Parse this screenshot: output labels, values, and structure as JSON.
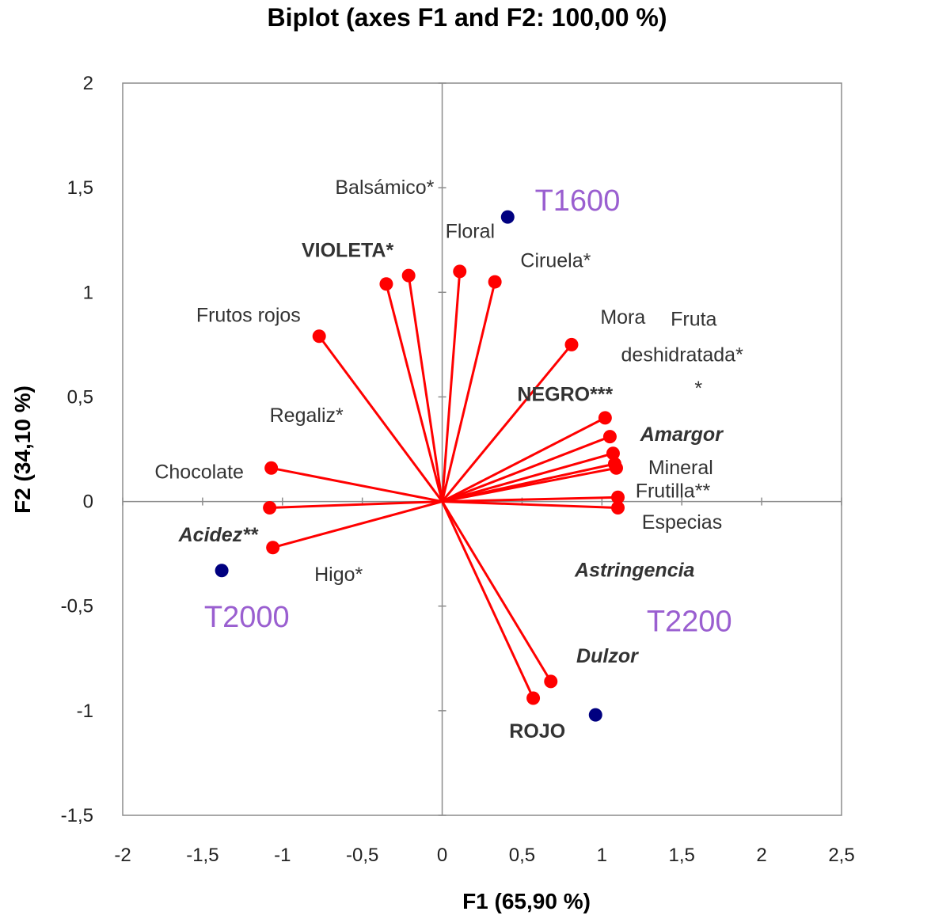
{
  "chart_data": {
    "type": "scatter",
    "title": "Biplot (axes F1 and F2: 100,00 %)",
    "xlabel": "F1 (65,90 %)",
    "ylabel": "F2 (34,10 %)",
    "xlim": [
      -2,
      2.5
    ],
    "ylim": [
      -1.5,
      2
    ],
    "x_ticks": [
      "-2",
      "-1,5",
      "-1",
      "-0,5",
      "0",
      "0,5",
      "1",
      "1,5",
      "2",
      "2,5"
    ],
    "y_ticks": [
      "-1,5",
      "-1",
      "-0,5",
      "0",
      "0,5",
      "1",
      "1,5",
      "2"
    ],
    "grid": false,
    "series": [
      {
        "kind": "variables",
        "color": "#ff0000",
        "points": [
          {
            "x": -0.35,
            "y": 1.04
          },
          {
            "x": -0.21,
            "y": 1.08
          },
          {
            "x": 0.11,
            "y": 1.1
          },
          {
            "x": 0.33,
            "y": 1.05
          },
          {
            "x": -0.77,
            "y": 0.79
          },
          {
            "x": 0.81,
            "y": 0.75
          },
          {
            "x": 1.02,
            "y": 0.4
          },
          {
            "x": 1.05,
            "y": 0.31
          },
          {
            "x": 1.07,
            "y": 0.23
          },
          {
            "x": 1.08,
            "y": 0.18
          },
          {
            "x": 1.09,
            "y": 0.16
          },
          {
            "x": 1.1,
            "y": 0.02
          },
          {
            "x": 1.1,
            "y": -0.03
          },
          {
            "x": -1.07,
            "y": 0.16
          },
          {
            "x": -1.08,
            "y": -0.03
          },
          {
            "x": -1.06,
            "y": -0.22
          },
          {
            "x": 0.57,
            "y": -0.94
          },
          {
            "x": 0.68,
            "y": -0.86
          }
        ]
      },
      {
        "kind": "observations",
        "color": "#000080",
        "points": [
          {
            "x": 0.41,
            "y": 1.36
          },
          {
            "x": -1.38,
            "y": -0.33
          },
          {
            "x": 0.96,
            "y": -1.02
          }
        ]
      }
    ],
    "variable_labels": [
      {
        "text": "Balsámico*",
        "x": -0.67,
        "y": 1.47,
        "weight": "normal",
        "style": "normal"
      },
      {
        "text": "Floral",
        "x": 0.02,
        "y": 1.26,
        "weight": "normal",
        "style": "normal"
      },
      {
        "text": "Ciruela*",
        "x": 0.49,
        "y": 1.12,
        "weight": "normal",
        "style": "normal"
      },
      {
        "text": "VIOLETA*",
        "x": -0.88,
        "y": 1.17,
        "weight": "bold",
        "style": "normal"
      },
      {
        "text": "Frutos rojos",
        "x": -1.54,
        "y": 0.86,
        "weight": "normal",
        "style": "normal"
      },
      {
        "text": "Mora",
        "x": 0.99,
        "y": 0.85,
        "weight": "normal",
        "style": "normal"
      },
      {
        "text": "Fruta",
        "x": 1.43,
        "y": 0.84,
        "weight": "normal",
        "style": "normal"
      },
      {
        "text": "deshidratada*",
        "x": 1.12,
        "y": 0.67,
        "weight": "normal",
        "style": "normal"
      },
      {
        "text": "*",
        "x": 1.58,
        "y": 0.51,
        "weight": "normal",
        "style": "normal"
      },
      {
        "text": "NEGRO***",
        "x": 0.47,
        "y": 0.48,
        "weight": "bold",
        "style": "normal"
      },
      {
        "text": "Regaliz*",
        "x": -1.08,
        "y": 0.38,
        "weight": "normal",
        "style": "normal"
      },
      {
        "text": "Amargor",
        "x": 1.24,
        "y": 0.29,
        "weight": "bold",
        "style": "italic"
      },
      {
        "text": "Mineral",
        "x": 1.29,
        "y": 0.13,
        "weight": "normal",
        "style": "normal"
      },
      {
        "text": "Chocolate",
        "x": -1.8,
        "y": 0.11,
        "weight": "normal",
        "style": "normal"
      },
      {
        "text": "Frutilla**",
        "x": 1.21,
        "y": 0.02,
        "weight": "normal",
        "style": "normal"
      },
      {
        "text": "Especias",
        "x": 1.25,
        "y": -0.13,
        "weight": "normal",
        "style": "normal"
      },
      {
        "text": "Acidez**",
        "x": -1.65,
        "y": -0.19,
        "weight": "bold",
        "style": "italic"
      },
      {
        "text": "Higo*",
        "x": -0.8,
        "y": -0.38,
        "weight": "normal",
        "style": "normal"
      },
      {
        "text": "Astringencia",
        "x": 0.83,
        "y": -0.36,
        "weight": "bold",
        "style": "italic"
      },
      {
        "text": "Dulzor",
        "x": 0.84,
        "y": -0.77,
        "weight": "bold",
        "style": "italic"
      },
      {
        "text": "ROJO",
        "x": 0.42,
        "y": -1.13,
        "weight": "bold",
        "style": "normal"
      }
    ],
    "observation_labels": [
      {
        "text": "T1600",
        "x": 0.58,
        "y": 1.39
      },
      {
        "text": "T2000",
        "x": -1.49,
        "y": -0.6
      },
      {
        "text": "T2200",
        "x": 1.28,
        "y": -0.62
      }
    ]
  }
}
